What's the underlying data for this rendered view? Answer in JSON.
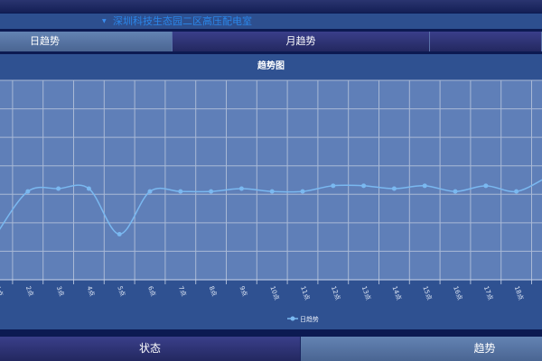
{
  "location": {
    "label": "深圳科技生态园二区高压配电室"
  },
  "tabs": [
    {
      "label": "日趋势",
      "active": true
    },
    {
      "label": "月趋势",
      "active": false
    },
    {
      "label": "",
      "active": false
    }
  ],
  "panel": {
    "title": "趋势图"
  },
  "chart_data": {
    "type": "line",
    "smooth": true,
    "categories": [
      "1点",
      "2点",
      "3点",
      "4点",
      "5点",
      "6点",
      "7点",
      "8点",
      "9点",
      "10点",
      "11点",
      "12点",
      "13点",
      "14点",
      "15点",
      "16点",
      "17点",
      "18点",
      "19点"
    ],
    "series": [
      {
        "name": "日趋势",
        "values": [
          1.65,
          3.1,
          3.2,
          3.2,
          1.6,
          3.1,
          3.1,
          3.1,
          3.2,
          3.1,
          3.1,
          3.3,
          3.3,
          3.2,
          3.3,
          3.1,
          3.3,
          3.1,
          3.6
        ]
      }
    ],
    "ylim": [
      0,
      7
    ],
    "grid": true,
    "legend": "bottom-center",
    "colors": {
      "line": "#7ab8f0",
      "plot_bg": "#5f7fb8",
      "grid": "#a9b9d6"
    }
  },
  "bottom_tabs": [
    {
      "label": "状态",
      "active": false
    },
    {
      "label": "趋势",
      "active": true
    }
  ]
}
